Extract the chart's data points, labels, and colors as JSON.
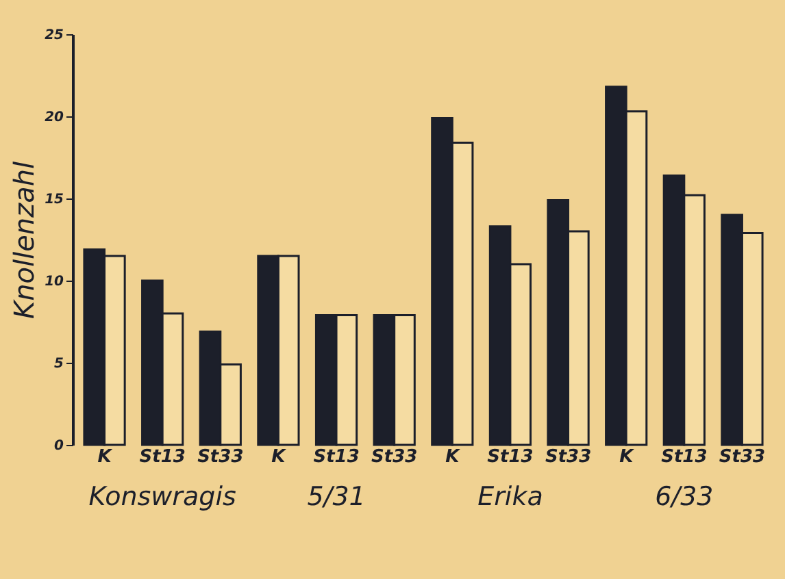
{
  "chart_data": {
    "type": "bar",
    "ylabel": "Knollenzahl",
    "categories": [
      "K",
      "St13",
      "St33",
      "K",
      "St13",
      "St33",
      "K",
      "St13",
      "St33",
      "K",
      "St13",
      "St33"
    ],
    "series": [
      {
        "color": "#1c1f2a",
        "values": [
          11.9,
          10.0,
          6.9,
          11.5,
          7.9,
          7.9,
          19.9,
          13.3,
          14.9,
          21.8,
          16.4,
          14.0
        ]
      },
      {
        "color": "#f5dca2",
        "values": [
          11.5,
          8.0,
          4.9,
          11.5,
          7.9,
          7.9,
          18.4,
          11.0,
          13.0,
          20.3,
          15.2,
          12.9
        ]
      }
    ],
    "annotations": [
      "Konswragis",
      "5/31",
      "Erika",
      "6/33"
    ],
    "ylim": [
      0,
      25
    ],
    "yticks": [
      0,
      5,
      10,
      15,
      20,
      25
    ]
  }
}
